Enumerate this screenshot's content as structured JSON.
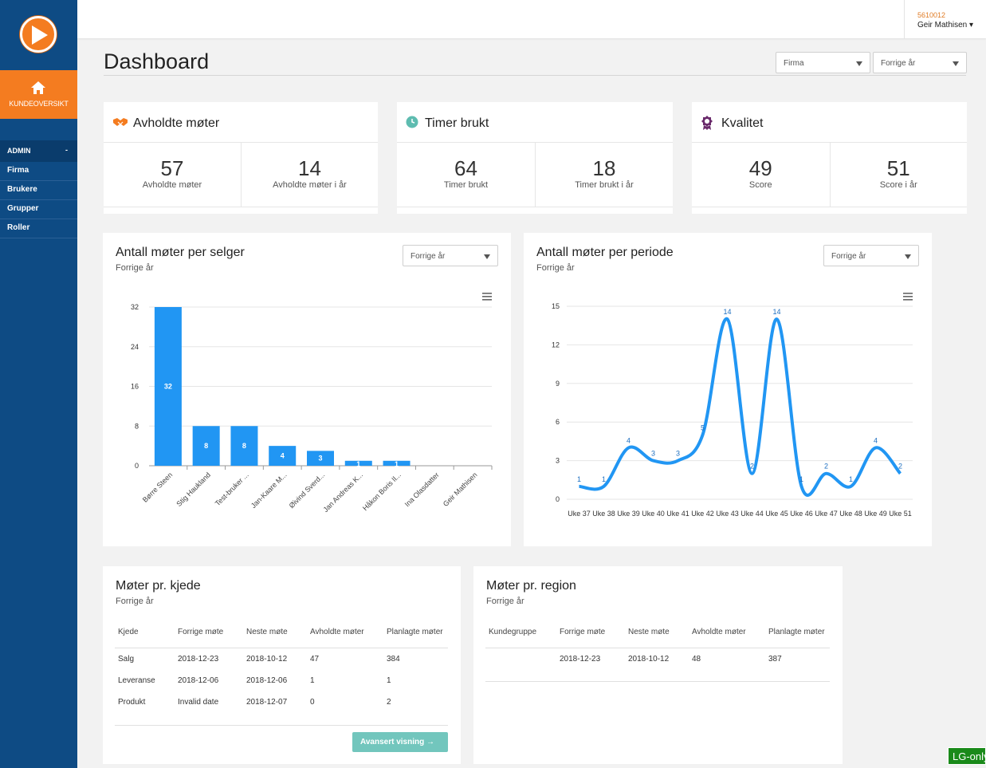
{
  "sidebar": {
    "home_label": "KUNDEOVERSIKT",
    "admin_label": "ADMIN",
    "admin_toggle": "-",
    "items": [
      {
        "label": "Firma"
      },
      {
        "label": "Brukere"
      },
      {
        "label": "Grupper"
      },
      {
        "label": "Roller"
      }
    ]
  },
  "user": {
    "id": "5610012",
    "name": "Geir Mathisen ▾"
  },
  "header": {
    "title": "Dashboard",
    "filter_company": "Firma",
    "filter_period": "Forrige år"
  },
  "kpis": [
    {
      "title": "Avholdte møter",
      "icon": "handshake-icon",
      "left_value": "57",
      "left_label": "Avholdte møter",
      "right_value": "14",
      "right_label": "Avholdte møter i år"
    },
    {
      "title": "Timer brukt",
      "icon": "clock-icon",
      "left_value": "64",
      "left_label": "Timer brukt",
      "right_value": "18",
      "right_label": "Timer brukt i år"
    },
    {
      "title": "Kvalitet",
      "icon": "award-icon",
      "left_value": "49",
      "left_label": "Score",
      "right_value": "51",
      "right_label": "Score i år"
    }
  ],
  "colors": {
    "accent": "#f47c20",
    "sidebar": "#0e4b84",
    "chart": "#2196f3",
    "button": "#72c6bd"
  },
  "chart_data": [
    {
      "type": "bar",
      "title": "Antall møter per selger",
      "subtitle": "Forrige år",
      "filter": "Forrige år",
      "categories": [
        "Børre Steen",
        "Stig Haukland",
        "Test-bruker ...",
        "Jan-Kaare M...",
        "Øivind Sverd...",
        "Jan Andreas K...",
        "Håkon Boris Il...",
        "Ina Olasdatter",
        "Geir Mathisen"
      ],
      "values": [
        32,
        8,
        8,
        4,
        3,
        1,
        1,
        0,
        0
      ],
      "yticks": [
        0,
        8,
        16,
        24,
        32
      ],
      "ylim": [
        0,
        32
      ],
      "grid": true
    },
    {
      "type": "line",
      "title": "Antall møter per periode",
      "subtitle": "Forrige år",
      "filter": "Forrige år",
      "categories": [
        "Uke 37",
        "Uke 38",
        "Uke 39",
        "Uke 40",
        "Uke 41",
        "Uke 42",
        "Uke 43",
        "Uke 44",
        "Uke 45",
        "Uke 46",
        "Uke 47",
        "Uke 48",
        "Uke 49",
        "Uke 51"
      ],
      "values": [
        1,
        1,
        4,
        3,
        3,
        5,
        14,
        2,
        14,
        1,
        2,
        1,
        4,
        2
      ],
      "yticks": [
        0,
        3,
        6,
        9,
        12,
        15
      ],
      "ylim": [
        0,
        15
      ],
      "grid": true
    }
  ],
  "table_kjede": {
    "title": "Møter pr. kjede",
    "subtitle": "Forrige år",
    "columns": [
      "Kjede",
      "Forrige møte",
      "Neste møte",
      "Avholdte møter",
      "Planlagte møter"
    ],
    "rows": [
      [
        "Salg",
        "2018-12-23",
        "2018-10-12",
        "47",
        "384"
      ],
      [
        "Leveranse",
        "2018-12-06",
        "2018-12-06",
        "1",
        "1"
      ],
      [
        "Produkt",
        "Invalid date",
        "2018-12-07",
        "0",
        "2"
      ]
    ],
    "button_label": "Avansert visning →"
  },
  "table_region": {
    "title": "Møter pr. region",
    "subtitle": "Forrige år",
    "columns": [
      "Kundegruppe",
      "Forrige møte",
      "Neste møte",
      "Avholdte møter",
      "Planlagte møter"
    ],
    "rows": [
      [
        "",
        "2018-12-23",
        "2018-10-12",
        "48",
        "387"
      ]
    ]
  },
  "badge": "LG-only"
}
